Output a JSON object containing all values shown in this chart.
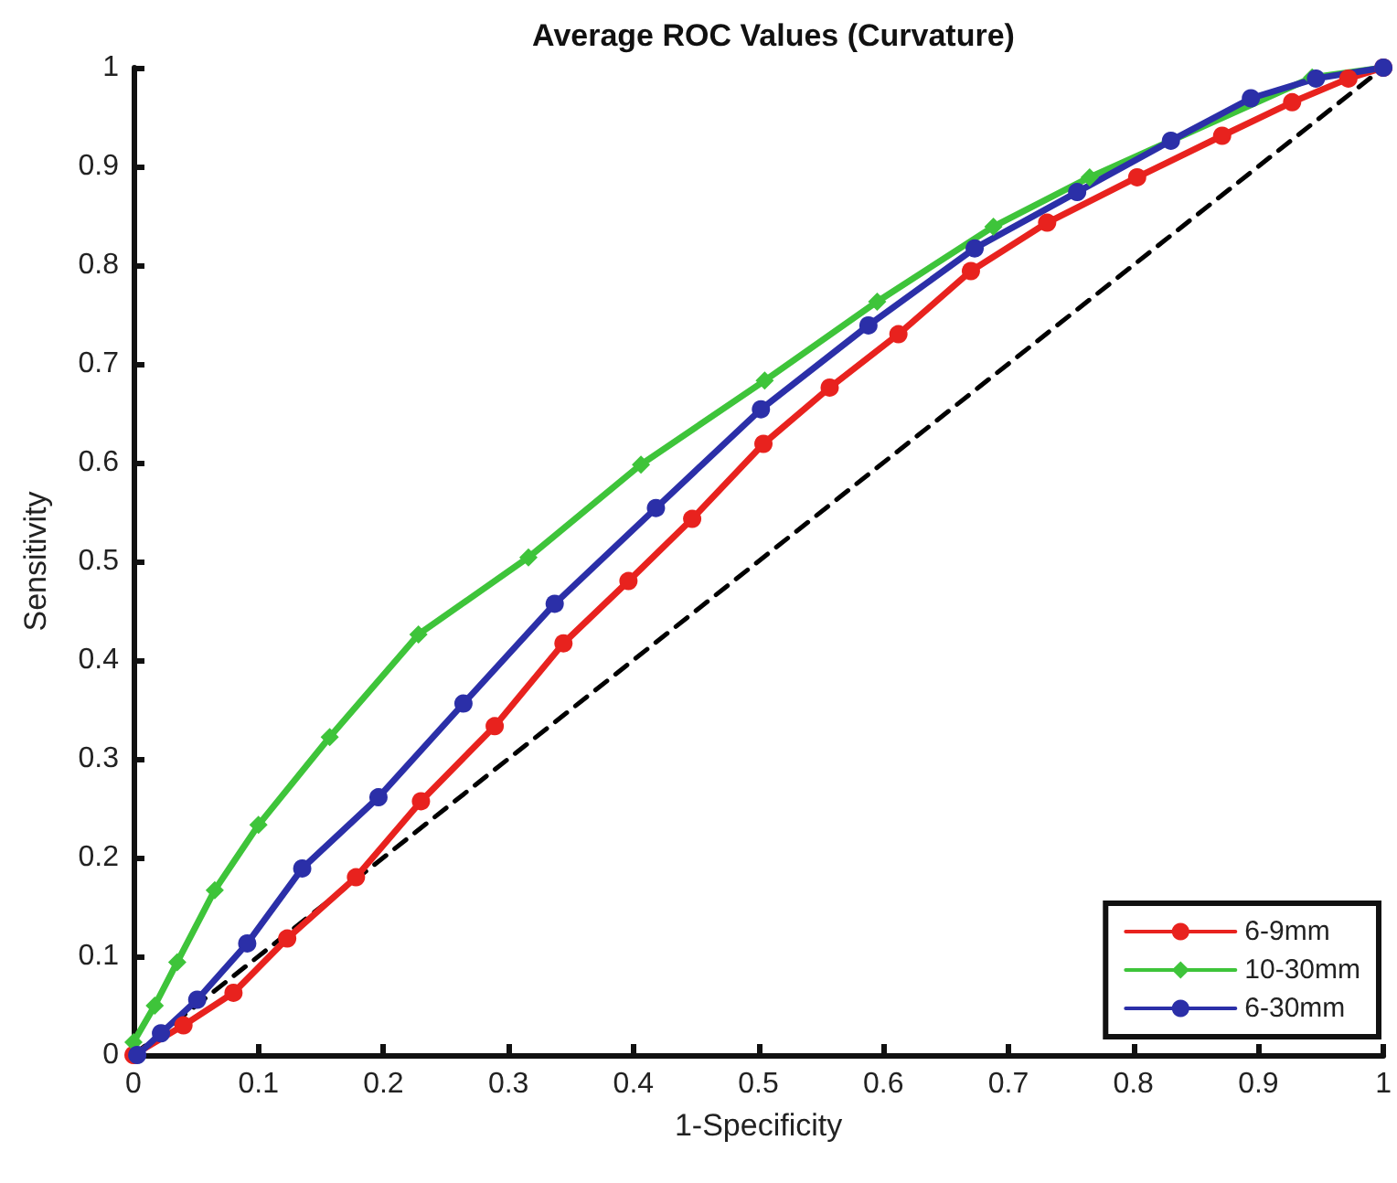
{
  "chart_data": {
    "type": "line",
    "title": "Average ROC Values (Curvature)",
    "xlabel": "1-Specificity",
    "ylabel": "Sensitivity",
    "xlim": [
      0,
      1
    ],
    "ylim": [
      0,
      1
    ],
    "xticks": [
      0,
      0.1,
      0.2,
      0.3,
      0.4,
      0.5,
      0.6,
      0.7,
      0.8,
      0.9,
      1
    ],
    "yticks": [
      0,
      0.1,
      0.2,
      0.3,
      0.4,
      0.5,
      0.6,
      0.7,
      0.8,
      0.9,
      1
    ],
    "grid": false,
    "legend": "bottom right",
    "series": [
      {
        "name": "6-9mm",
        "color": "#e8221e",
        "marker": "circle",
        "x": [
          0,
          0.04,
          0.08,
          0.123,
          0.178,
          0.23,
          0.289,
          0.344,
          0.396,
          0.447,
          0.504,
          0.557,
          0.612,
          0.67,
          0.731,
          0.803,
          0.871,
          0.927,
          0.972,
          1
        ],
        "values": [
          0,
          0.03,
          0.063,
          0.118,
          0.18,
          0.257,
          0.333,
          0.417,
          0.48,
          0.543,
          0.619,
          0.676,
          0.73,
          0.794,
          0.843,
          0.889,
          0.931,
          0.965,
          0.989,
          1
        ]
      },
      {
        "name": "10-30mm",
        "color": "#3ec43a",
        "marker": "diamond",
        "x": [
          0,
          0.017,
          0.035,
          0.065,
          0.1,
          0.157,
          0.228,
          0.316,
          0.406,
          0.505,
          0.595,
          0.688,
          0.765,
          0.943,
          1
        ],
        "values": [
          0.013,
          0.05,
          0.094,
          0.167,
          0.233,
          0.322,
          0.426,
          0.504,
          0.598,
          0.683,
          0.763,
          0.839,
          0.889,
          0.99,
          1
        ]
      },
      {
        "name": "6-30mm",
        "color": "#2b2fa8",
        "marker": "circle",
        "x": [
          0.003,
          0.022,
          0.051,
          0.091,
          0.135,
          0.196,
          0.264,
          0.337,
          0.418,
          0.502,
          0.588,
          0.673,
          0.755,
          0.83,
          0.894,
          0.946,
          1
        ],
        "values": [
          0,
          0.022,
          0.056,
          0.113,
          0.189,
          0.261,
          0.356,
          0.457,
          0.554,
          0.654,
          0.739,
          0.817,
          0.874,
          0.926,
          0.969,
          0.989,
          1
        ]
      },
      {
        "color": "#000000",
        "marker": "none",
        "line_style": "dashed",
        "x": [
          0,
          1
        ],
        "values": [
          0,
          1
        ]
      }
    ]
  }
}
